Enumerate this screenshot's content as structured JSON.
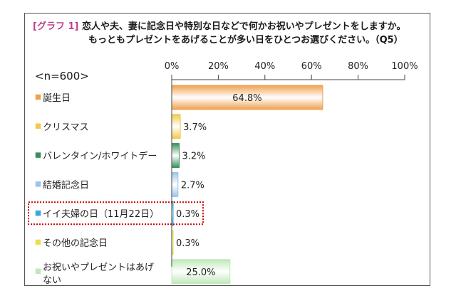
{
  "title": {
    "tag": "[グラフ 1]",
    "line1": "恋人や夫、妻に記念日や特別な日などで何かお祝いやプレゼントをしますか。",
    "line2": "もっともプレゼントをあげることが多い日をひとつお選びください。（Q5）"
  },
  "sample_label": "<n=600>",
  "chart_data": {
    "type": "bar",
    "orientation": "horizontal",
    "title": "恋人や夫、妻に記念日や特別な日などで何かお祝いやプレゼントをしますか。もっともプレゼントをあげることが多い日をひとつお選びください。（Q5）",
    "xlim": [
      0,
      100
    ],
    "ticks": [
      "0%",
      "20%",
      "40%",
      "60%",
      "80%",
      "100%"
    ],
    "tick_values": [
      0,
      20,
      40,
      60,
      80,
      100
    ],
    "categories": [
      {
        "label": "誕生日",
        "value": 64.8,
        "value_label": "64.8%",
        "color": "#f0a050",
        "highlight": false
      },
      {
        "label": "クリスマス",
        "value": 3.7,
        "value_label": "3.7%",
        "color": "#f2c94c",
        "highlight": false
      },
      {
        "label": "バレンタイン/ホワイトデー",
        "value": 3.2,
        "value_label": "3.2%",
        "color": "#3a8f5a",
        "highlight": false
      },
      {
        "label": "結婚記念日",
        "value": 2.7,
        "value_label": "2.7%",
        "color": "#9cc4ea",
        "highlight": false
      },
      {
        "label": "イイ夫婦の日（11月22日）",
        "value": 0.3,
        "value_label": "0.3%",
        "color": "#3aa8d8",
        "highlight": true
      },
      {
        "label": "その他の記念日",
        "value": 0.3,
        "value_label": "0.3%",
        "color": "#e8e04a",
        "highlight": false
      },
      {
        "label": "お祝いやプレゼントはあげ",
        "label2": "ない",
        "value": 25.0,
        "value_label": "25.0%",
        "color": "#bfe8b8",
        "highlight": false
      }
    ],
    "highlight_color": "#cc0000"
  }
}
